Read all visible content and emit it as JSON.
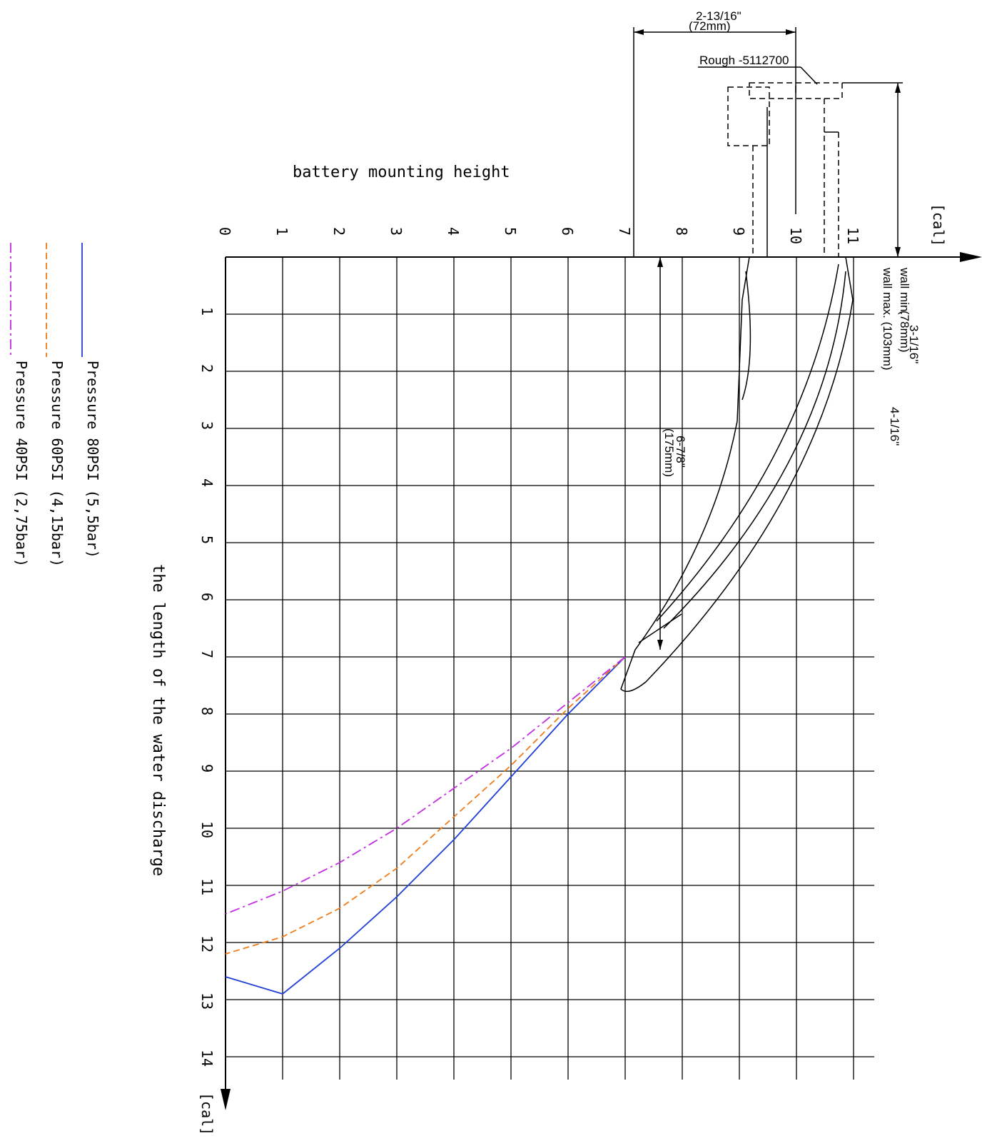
{
  "chart_data": {
    "type": "line",
    "xlabel": "battery mounting height",
    "ylabel": "the length of the water discharge",
    "x_unit": "[cal]",
    "y_unit": "[cal]",
    "x_ticks": [
      0,
      1,
      2,
      3,
      4,
      5,
      6,
      7,
      8,
      9,
      10,
      11
    ],
    "y_ticks": [
      1,
      2,
      3,
      4,
      5,
      6,
      7,
      8,
      9,
      10,
      11,
      12,
      13,
      14
    ],
    "xlim": [
      0,
      11.4
    ],
    "ylim": [
      0,
      14.5
    ],
    "grid": true,
    "legend_position": "left",
    "series": [
      {
        "name": "Pressure 80PSI (5,5bar)",
        "color": "#1f3fd6",
        "style": "solid",
        "points": [
          [
            7.0,
            7.0
          ],
          [
            6.0,
            8.0
          ],
          [
            5.0,
            9.1
          ],
          [
            4.0,
            10.2
          ],
          [
            3.0,
            11.2
          ],
          [
            2.0,
            12.1
          ],
          [
            1.0,
            12.9
          ],
          [
            0.0,
            12.6
          ]
        ]
      },
      {
        "name": "Pressure 60PSI (4,15bar)",
        "color": "#f07c1a",
        "style": "dashed",
        "points": [
          [
            7.0,
            7.0
          ],
          [
            6.0,
            7.9
          ],
          [
            5.0,
            8.9
          ],
          [
            4.0,
            9.8
          ],
          [
            3.0,
            10.7
          ],
          [
            2.0,
            11.4
          ],
          [
            1.0,
            11.9
          ],
          [
            0.0,
            12.2
          ]
        ]
      },
      {
        "name": "Pressure 40PSI (2,75bar)",
        "color": "#c22fe0",
        "style": "dashdot",
        "points": [
          [
            7.0,
            7.0
          ],
          [
            6.0,
            7.8
          ],
          [
            5.0,
            8.6
          ],
          [
            4.0,
            9.3
          ],
          [
            3.0,
            10.0
          ],
          [
            2.0,
            10.6
          ],
          [
            1.0,
            11.1
          ],
          [
            0.0,
            11.5
          ]
        ]
      }
    ]
  },
  "annotations": {
    "width_dim": "2-13/16\"",
    "width_dim_mm": "(72mm)",
    "rough_label": "Rough -5112700",
    "wall_min": "wall min.",
    "wall_min_dim": "3-1/16\"",
    "wall_min_mm": "(78mm)",
    "wall_max": "wall max. (103mm)",
    "height_dim": "4-1/16\"",
    "spout_dim": "6-7/8\"",
    "spout_dim_mm": "(175mm)"
  }
}
